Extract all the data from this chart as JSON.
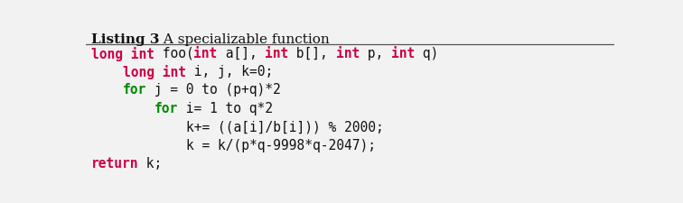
{
  "background_color": "#f2f2f2",
  "title_bold": "Listing 3",
  "title_normal": " A specializable function",
  "title_fontsize": 11.0,
  "code_fontsize": 10.5,
  "keyword_color": "#cc0044",
  "for_color": "#008800",
  "normal_color": "#111111",
  "lines": [
    [
      {
        "text": "long int",
        "color": "#cc0044",
        "bold": true
      },
      {
        "text": " foo(",
        "color": "#111111",
        "bold": false
      },
      {
        "text": "int",
        "color": "#cc0044",
        "bold": true
      },
      {
        "text": " a[], ",
        "color": "#111111",
        "bold": false
      },
      {
        "text": "int",
        "color": "#cc0044",
        "bold": true
      },
      {
        "text": " b[], ",
        "color": "#111111",
        "bold": false
      },
      {
        "text": "int",
        "color": "#cc0044",
        "bold": true
      },
      {
        "text": " p, ",
        "color": "#111111",
        "bold": false
      },
      {
        "text": "int",
        "color": "#cc0044",
        "bold": true
      },
      {
        "text": " q)",
        "color": "#111111",
        "bold": false
      }
    ],
    [
      {
        "text": "    long int",
        "color": "#cc0044",
        "bold": true
      },
      {
        "text": " i, j, k=0;",
        "color": "#111111",
        "bold": false
      }
    ],
    [
      {
        "text": "    ",
        "color": "#111111",
        "bold": false
      },
      {
        "text": "for",
        "color": "#008800",
        "bold": true
      },
      {
        "text": " j = 0 to (p+q)*2",
        "color": "#111111",
        "bold": false
      }
    ],
    [
      {
        "text": "        ",
        "color": "#111111",
        "bold": false
      },
      {
        "text": "for",
        "color": "#008800",
        "bold": true
      },
      {
        "text": " i= 1 to q*2",
        "color": "#111111",
        "bold": false
      }
    ],
    [
      {
        "text": "            k+= ((a[i]/b[i])) % 2000;",
        "color": "#111111",
        "bold": false
      }
    ],
    [
      {
        "text": "            k = k/(p*q-9998*q-2047);",
        "color": "#111111",
        "bold": false
      }
    ],
    [
      {
        "text": "return",
        "color": "#cc0044",
        "bold": true
      },
      {
        "text": " k;",
        "color": "#111111",
        "bold": false
      }
    ]
  ]
}
